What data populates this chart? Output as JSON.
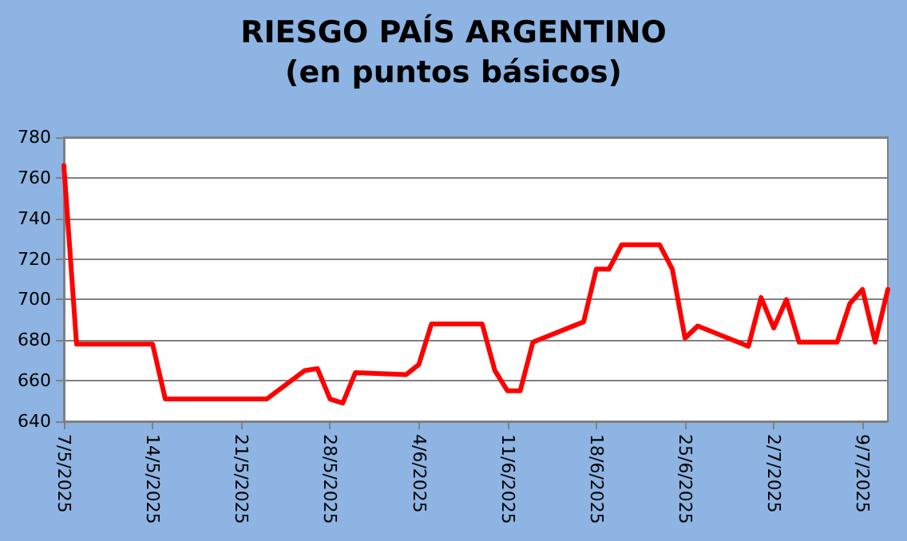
{
  "chart_data": {
    "type": "line",
    "title": "RIESGO PAÍS ARGENTINO",
    "subtitle": "(en puntos básicos)",
    "x": [
      "2025-05-07",
      "2025-05-08",
      "2025-05-14",
      "2025-05-15",
      "2025-05-23",
      "2025-05-26",
      "2025-05-27",
      "2025-05-28",
      "2025-05-29",
      "2025-05-30",
      "2025-06-03",
      "2025-06-04",
      "2025-06-05",
      "2025-06-09",
      "2025-06-10",
      "2025-06-11",
      "2025-06-12",
      "2025-06-13",
      "2025-06-17",
      "2025-06-18",
      "2025-06-19",
      "2025-06-20",
      "2025-06-23",
      "2025-06-24",
      "2025-06-25",
      "2025-06-26",
      "2025-06-30",
      "2025-07-01",
      "2025-07-02",
      "2025-07-03",
      "2025-07-04",
      "2025-07-07",
      "2025-07-08",
      "2025-07-09",
      "2025-07-10",
      "2025-07-11"
    ],
    "series": [
      {
        "color": "#ff0000",
        "values": [
          766,
          678,
          678,
          651,
          651,
          665,
          666,
          651,
          649,
          664,
          663,
          668,
          688,
          688,
          665,
          655,
          655,
          679,
          689,
          715,
          715,
          727,
          727,
          715,
          681,
          687,
          677,
          701,
          686,
          700,
          679,
          679,
          698,
          705,
          679,
          705
        ]
      }
    ],
    "xlim": [
      "2025-05-07",
      "2025-07-11"
    ],
    "xticks": [
      {
        "value": "2025-05-07",
        "label": "7/5/2025"
      },
      {
        "value": "2025-05-14",
        "label": "14/5/2025"
      },
      {
        "value": "2025-05-21",
        "label": "21/5/2025"
      },
      {
        "value": "2025-05-28",
        "label": "28/5/2025"
      },
      {
        "value": "2025-06-04",
        "label": "4/6/2025"
      },
      {
        "value": "2025-06-11",
        "label": "11/6/2025"
      },
      {
        "value": "2025-06-18",
        "label": "18/6/2025"
      },
      {
        "value": "2025-06-25",
        "label": "25/6/2025"
      },
      {
        "value": "2025-07-02",
        "label": "2/7/2025"
      },
      {
        "value": "2025-07-09",
        "label": "9/7/2025"
      }
    ],
    "ylim": [
      640,
      780
    ],
    "yticks": [
      640,
      660,
      680,
      700,
      720,
      740,
      760,
      780
    ],
    "grid": "y",
    "marker": "none",
    "line_style": "solid"
  }
}
